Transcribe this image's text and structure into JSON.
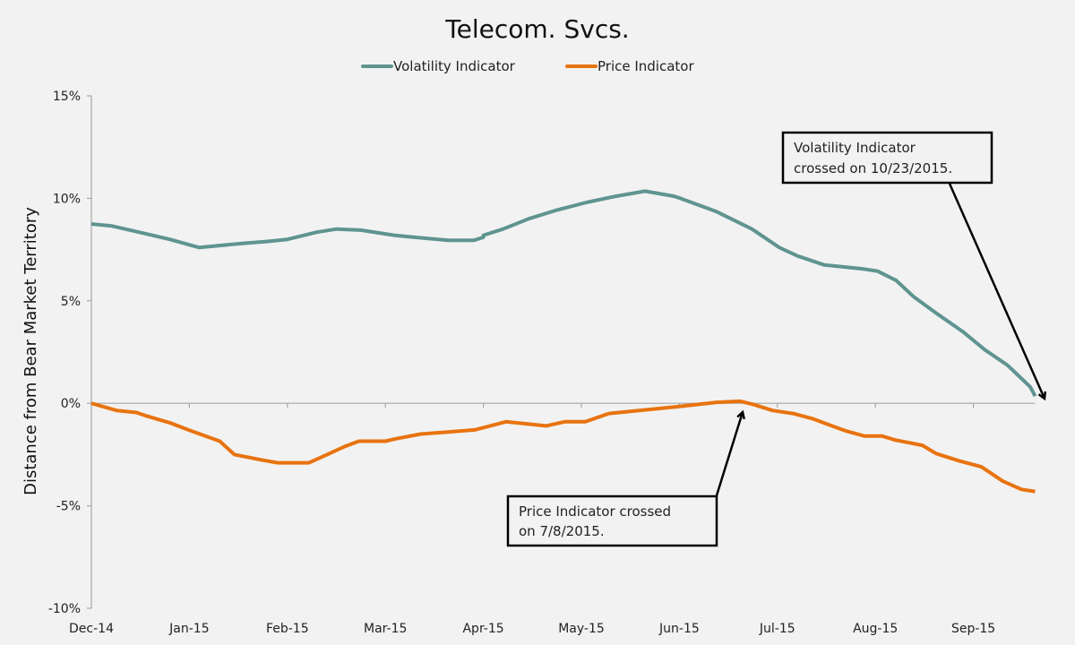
{
  "chart_data": {
    "type": "line",
    "title": "Telecom. Svcs.",
    "xlabel": "",
    "ylabel": "Distance from Bear Market Territory",
    "x_unit": "months since Dec-14",
    "xlim": [
      0,
      9.63
    ],
    "ylim": [
      -10,
      15
    ],
    "yticks": [
      15,
      10,
      5,
      0,
      -5,
      -10
    ],
    "ytick_labels": [
      "15%",
      "10%",
      "5%",
      "0%",
      "-5%",
      "-10%"
    ],
    "xticks": [
      0,
      1,
      2,
      3,
      4,
      5,
      6,
      7,
      8,
      9
    ],
    "xtick_labels": [
      "Dec-14",
      "Jan-15",
      "Feb-15",
      "Mar-15",
      "Apr-15",
      "May-15",
      "Jun-15",
      "Jul-15",
      "Aug-15",
      "Sep-15"
    ],
    "grid": false,
    "legend": "top-center",
    "colors": {
      "volatility": "#5f9490",
      "price": "#e8730f",
      "background": "#f2f2f2",
      "axis": "#a6a6a6",
      "annotation": "#000000"
    },
    "series": [
      {
        "name": "Volatility Indicator",
        "key": "volatility",
        "x": [
          0,
          0.21,
          0.53,
          0.8,
          1.1,
          1.54,
          1.81,
          2.0,
          2.3,
          2.5,
          2.75,
          3.09,
          3.3,
          3.64,
          3.9,
          4.0,
          4.0,
          4.2,
          4.46,
          4.73,
          5.05,
          5.35,
          5.65,
          5.95,
          6.01,
          6.38,
          6.74,
          7.02,
          7.2,
          7.48,
          7.88,
          8.02,
          8.21,
          8.39,
          8.62,
          8.89,
          9.12,
          9.35,
          9.58,
          9.63
        ],
        "y": [
          8.75,
          8.65,
          8.3,
          8.0,
          7.6,
          7.8,
          7.9,
          8.0,
          8.35,
          8.5,
          8.45,
          8.2,
          8.1,
          7.95,
          7.95,
          8.1,
          8.2,
          8.5,
          9.0,
          9.4,
          9.8,
          10.1,
          10.35,
          10.1,
          10.0,
          9.35,
          8.5,
          7.6,
          7.2,
          6.75,
          6.55,
          6.45,
          6.0,
          5.2,
          4.4,
          3.5,
          2.6,
          1.85,
          0.8,
          0.35
        ]
      },
      {
        "name": "Price Indicator",
        "key": "price",
        "x": [
          0,
          0.26,
          0.46,
          0.55,
          0.8,
          0.99,
          1.31,
          1.46,
          1.72,
          1.9,
          2.22,
          2.36,
          2.59,
          2.73,
          3.0,
          3.09,
          3.36,
          3.64,
          3.91,
          4.23,
          4.64,
          4.83,
          5.04,
          5.28,
          5.69,
          6.01,
          6.38,
          6.62,
          6.75,
          6.95,
          7.16,
          7.36,
          7.5,
          7.7,
          7.89,
          8.07,
          8.21,
          8.48,
          8.62,
          8.85,
          9.08,
          9.3,
          9.49,
          9.63
        ],
        "y": [
          0,
          -0.35,
          -0.45,
          -0.6,
          -0.95,
          -1.3,
          -1.85,
          -2.5,
          -2.75,
          -2.9,
          -2.9,
          -2.6,
          -2.1,
          -1.85,
          -1.85,
          -1.75,
          -1.5,
          -1.4,
          -1.3,
          -0.9,
          -1.1,
          -0.9,
          -0.9,
          -0.5,
          -0.3,
          -0.15,
          0.05,
          0.1,
          -0.05,
          -0.35,
          -0.5,
          -0.75,
          -1.0,
          -1.35,
          -1.6,
          -1.6,
          -1.8,
          -2.05,
          -2.45,
          -2.8,
          -3.1,
          -3.8,
          -4.2,
          -4.3
        ]
      }
    ],
    "annotations": [
      {
        "text_line1": "Volatility Indicator",
        "text_line2": "crossed on 10/23/2015.",
        "points_to_x": 9.7,
        "points_to_y": 0
      },
      {
        "text_line1": "Price Indicator crossed",
        "text_line2": "on 7/8/2015.",
        "points_to_x": 6.7,
        "points_to_y": -0.3
      }
    ]
  }
}
